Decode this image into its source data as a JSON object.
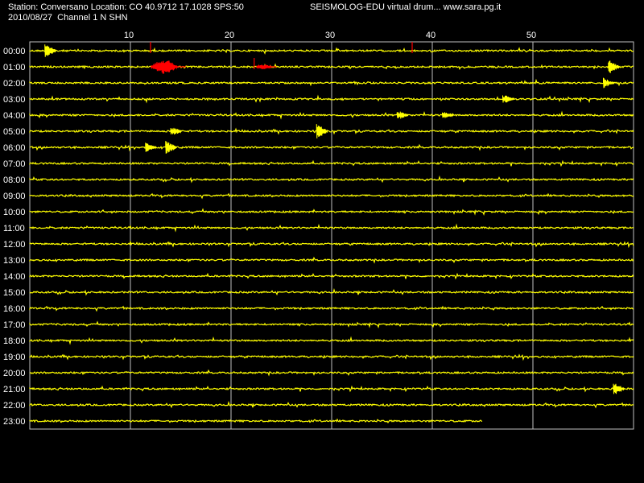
{
  "header": {
    "line1": "Station: Conversano Location: CO 40.9712 17.1028 SPS:50",
    "line2": "2010/08/27  Channel 1 N SHN",
    "credit": "SEISMOLOG-EDU virtual drum... www.sara.pg.it"
  },
  "colors": {
    "background": "#000000",
    "trace": "#ffff00",
    "event": "#ff0000",
    "grid": "#c0c0c0",
    "text": "#ffffff"
  },
  "chart_data": {
    "type": "line",
    "title": "",
    "xlabel": "",
    "ylabel": "",
    "xlim": [
      0,
      60
    ],
    "xticks": [
      10,
      20,
      30,
      40,
      50
    ],
    "grid": true,
    "rows": [
      "00:00",
      "01:00",
      "02:00",
      "03:00",
      "04:00",
      "05:00",
      "06:00",
      "07:00",
      "08:00",
      "09:00",
      "10:00",
      "11:00",
      "12:00",
      "13:00",
      "14:00",
      "15:00",
      "16:00",
      "17:00",
      "18:00",
      "19:00",
      "20:00",
      "21:00",
      "22:00",
      "23:00"
    ],
    "last_row_end_minute": 45,
    "events": [
      {
        "row": "01:00",
        "start_minute": 12,
        "end_minute": 15.5,
        "color": "event",
        "amplitude": 9
      },
      {
        "row": "01:00",
        "start_minute": 22.5,
        "end_minute": 24.5,
        "color": "event",
        "amplitude": 3
      }
    ],
    "markers": [
      {
        "row": "00:00",
        "minute": 12
      },
      {
        "row": "00:00",
        "minute": 38
      },
      {
        "row": "01:00",
        "minute": 22.3
      }
    ],
    "bursts": [
      {
        "row": "00:00",
        "minute": 1.5,
        "amplitude": 9
      },
      {
        "row": "01:00",
        "minute": 57.5,
        "amplitude": 9
      },
      {
        "row": "02:00",
        "minute": 57,
        "amplitude": 7
      },
      {
        "row": "03:00",
        "minute": 47,
        "amplitude": 6
      },
      {
        "row": "04:00",
        "minute": 36.5,
        "amplitude": 6
      },
      {
        "row": "04:00",
        "minute": 41,
        "amplitude": 6
      },
      {
        "row": "05:00",
        "minute": 28.5,
        "amplitude": 9
      },
      {
        "row": "05:00",
        "minute": 14,
        "amplitude": 6
      },
      {
        "row": "06:00",
        "minute": 13.5,
        "amplitude": 8
      },
      {
        "row": "06:00",
        "minute": 11.5,
        "amplitude": 6
      },
      {
        "row": "21:00",
        "minute": 58,
        "amplitude": 8
      }
    ]
  }
}
